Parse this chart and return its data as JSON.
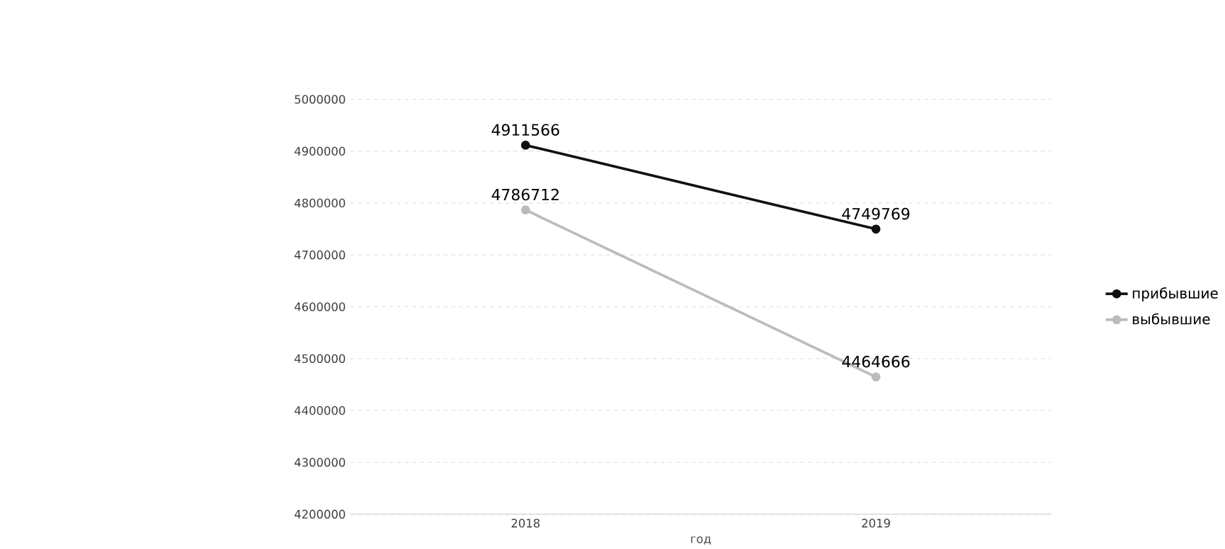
{
  "chart_data": {
    "type": "line",
    "xlabel": "год",
    "categories": [
      "2018",
      "2019"
    ],
    "series": [
      {
        "name": "прибывшие",
        "color": "#111111",
        "values": [
          4911566,
          4749769
        ]
      },
      {
        "name": "выбывшие",
        "color": "#bbbbbb",
        "values": [
          4786712,
          4464666
        ]
      }
    ],
    "ylim": [
      4200000,
      5000000
    ],
    "yticks": [
      4200000,
      4300000,
      4400000,
      4500000,
      4600000,
      4700000,
      4800000,
      4900000,
      5000000
    ],
    "grid": "y",
    "legend": "right",
    "marker": "circle",
    "line_style": "solid",
    "data_labels": true
  }
}
